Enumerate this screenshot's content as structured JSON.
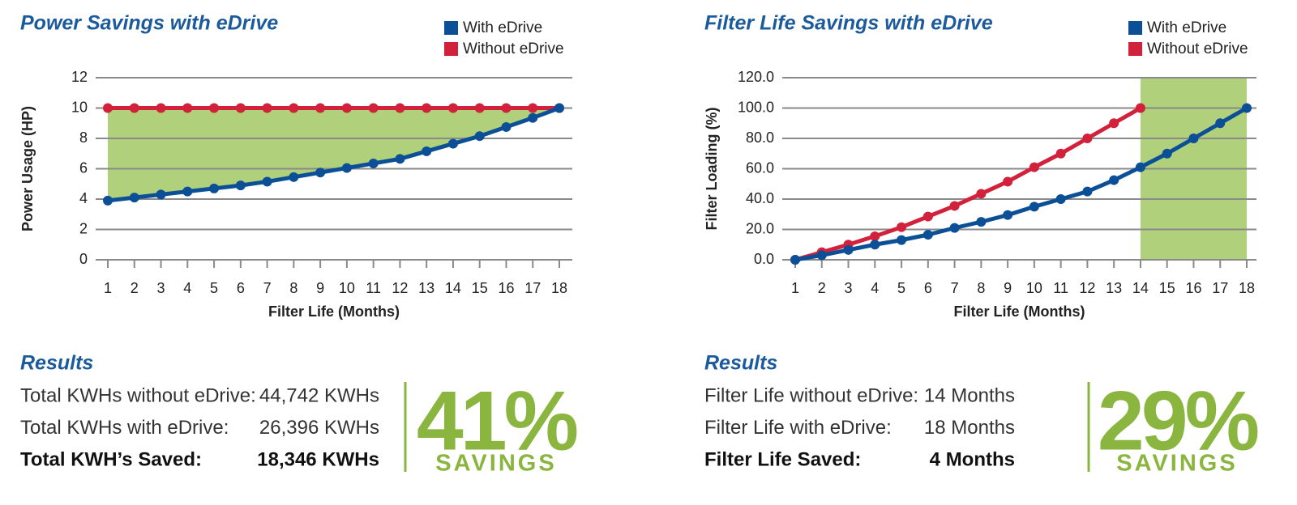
{
  "chart_data": [
    {
      "type": "line",
      "title": "Power Savings with eDrive",
      "xlabel": "Filter Life (Months)",
      "ylabel": "Power Usage (HP)",
      "x": [
        1,
        2,
        3,
        4,
        5,
        6,
        7,
        8,
        9,
        10,
        11,
        12,
        13,
        14,
        15,
        16,
        17,
        18
      ],
      "xlim": [
        1,
        18
      ],
      "xticks": [
        1,
        2,
        3,
        4,
        5,
        6,
        7,
        8,
        9,
        10,
        11,
        12,
        13,
        14,
        15,
        16,
        17,
        18
      ],
      "ylim": [
        0,
        12
      ],
      "yticks": [
        0,
        2,
        4,
        6,
        8,
        10,
        12
      ],
      "grid": true,
      "fill_between": true,
      "fill_color": "#9cc45a",
      "series": [
        {
          "name": "With eDrive",
          "color": "#0b4f96",
          "values": [
            3.9,
            4.1,
            4.3,
            4.5,
            4.7,
            4.9,
            5.15,
            5.45,
            5.75,
            6.05,
            6.35,
            6.65,
            7.15,
            7.65,
            8.15,
            8.75,
            9.35,
            10
          ]
        },
        {
          "name": "Without eDrive",
          "color": "#d2213a",
          "values": [
            10,
            10,
            10,
            10,
            10,
            10,
            10,
            10,
            10,
            10,
            10,
            10,
            10,
            10,
            10,
            10,
            10,
            10
          ]
        }
      ]
    },
    {
      "type": "line",
      "title": "Filter Life Savings with eDrive",
      "xlabel": "Filter Life (Months)",
      "ylabel": "Filter Loading (%)",
      "x": [
        1,
        2,
        3,
        4,
        5,
        6,
        7,
        8,
        9,
        10,
        11,
        12,
        13,
        14,
        15,
        16,
        17,
        18
      ],
      "xlim": [
        1,
        18
      ],
      "xticks": [
        1,
        2,
        3,
        4,
        5,
        6,
        7,
        8,
        9,
        10,
        11,
        12,
        13,
        14,
        15,
        16,
        17,
        18
      ],
      "ylim": [
        0,
        120
      ],
      "yticks": [
        {
          "value": 0,
          "label": "0.0"
        },
        {
          "value": 20,
          "label": "20.0"
        },
        {
          "value": 40,
          "label": "40.0"
        },
        {
          "value": 60,
          "label": "60.0"
        },
        {
          "value": 80,
          "label": "80.0"
        },
        {
          "value": 100,
          "label": "100.0"
        },
        {
          "value": 120,
          "label": "120.0"
        }
      ],
      "grid": true,
      "shade_x": [
        14,
        18
      ],
      "fill_color": "#9cc45a",
      "series": [
        {
          "name": "With eDrive",
          "color": "#0b4f96",
          "values": [
            0,
            3,
            6.5,
            10,
            13,
            16.5,
            21,
            25,
            29.5,
            35,
            40,
            45,
            52.5,
            61,
            70,
            80,
            90,
            100
          ]
        },
        {
          "name": "Without eDrive",
          "color": "#d2213a",
          "values": [
            0,
            5,
            10,
            15.5,
            21.5,
            28.5,
            35.5,
            43.5,
            51.5,
            61,
            70,
            80,
            90,
            100,
            null,
            null,
            null,
            null
          ]
        }
      ]
    }
  ],
  "results": [
    {
      "title": "Results",
      "rows": [
        [
          "Total KWHs without eDrive:",
          "44,742 KWHs"
        ],
        [
          "Total KWHs with eDrive:",
          "26,396 KWHs"
        ],
        [
          "Total KWH’s Saved:",
          "18,346 KWHs"
        ]
      ],
      "percent": "41%",
      "caption": "SAVINGS"
    },
    {
      "title": "Results",
      "rows": [
        [
          "Filter Life without eDrive:",
          "14 Months"
        ],
        [
          "Filter Life with eDrive:",
          "18 Months"
        ],
        [
          "Filter Life Saved:",
          "4 Months"
        ]
      ],
      "percent": "29%",
      "caption": "SAVINGS"
    }
  ]
}
